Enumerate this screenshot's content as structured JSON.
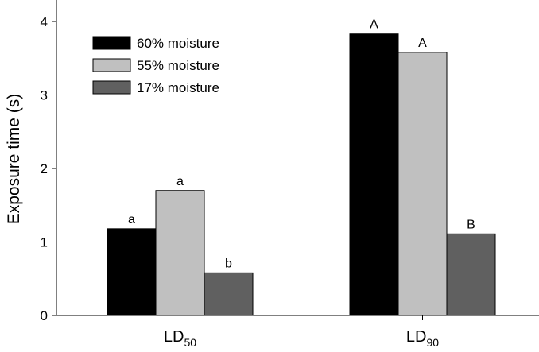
{
  "chart_data": {
    "type": "bar",
    "categories": [
      {
        "main": "LD",
        "sub": "50"
      },
      {
        "main": "LD",
        "sub": "90"
      }
    ],
    "series": [
      {
        "name": "60% moisture",
        "color": "#000000",
        "values": [
          1.18,
          3.83
        ],
        "labels": [
          "a",
          "A"
        ]
      },
      {
        "name": "55% moisture",
        "color": "#c0c0c0",
        "values": [
          1.7,
          3.58
        ],
        "labels": [
          "a",
          "A"
        ]
      },
      {
        "name": "17% moisture",
        "color": "#606060",
        "values": [
          0.58,
          1.11
        ],
        "labels": [
          "b",
          "B"
        ]
      }
    ],
    "ylabel": "Exposure time (s)",
    "ylim": [
      0,
      4.3
    ],
    "yticks": [
      0,
      1,
      2,
      3,
      4
    ],
    "grid": false,
    "legend": "top-left"
  }
}
